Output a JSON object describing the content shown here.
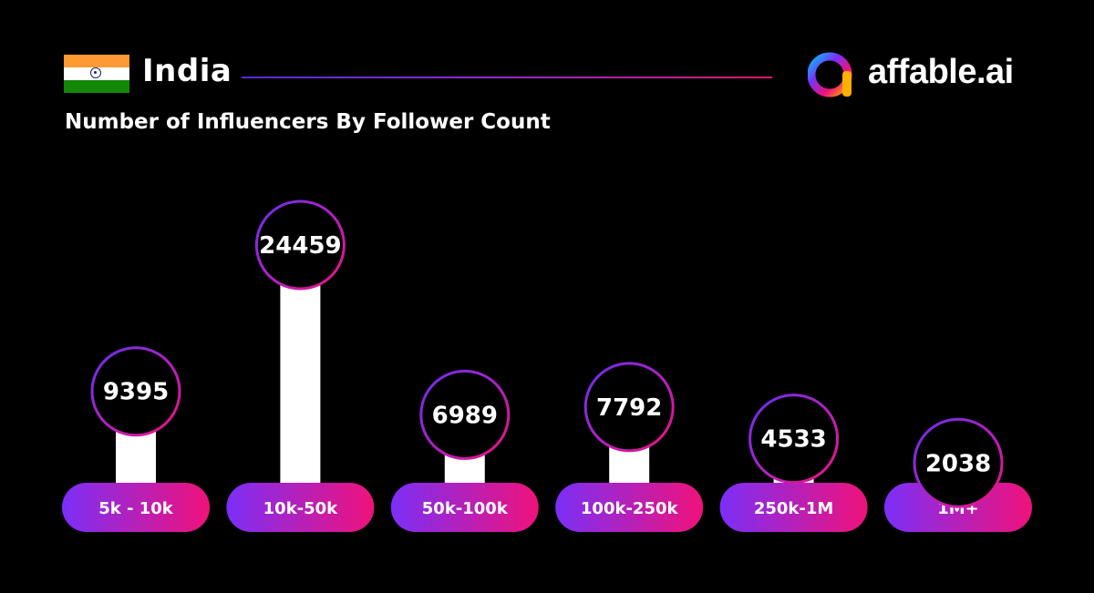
{
  "header": {
    "country": "India",
    "subtitle": "Number of Influencers By Follower Count",
    "brand": "affable.ai",
    "flag_colors": [
      "#FF9933",
      "#FFFFFF",
      "#138808"
    ],
    "divider_gradient": [
      "#5b2ad6",
      "#e0166f"
    ]
  },
  "colors": {
    "background": "#000000",
    "bar": "#ffffff",
    "pill_gradient_start": "#7b2ff7",
    "pill_gradient_end": "#f0127a",
    "circle_fill": "#000000",
    "text": "#ffffff"
  },
  "chart_data": {
    "type": "bar",
    "title": "Number of Influencers By Follower Count",
    "xlabel": "",
    "ylabel": "",
    "categories": [
      "5k - 10k",
      "10k-50k",
      "50k-100k",
      "100k-250k",
      "250k-1M",
      "1M+"
    ],
    "values": [
      9395,
      24459,
      6989,
      7792,
      4533,
      2038
    ],
    "grid": false,
    "legend": "none"
  }
}
